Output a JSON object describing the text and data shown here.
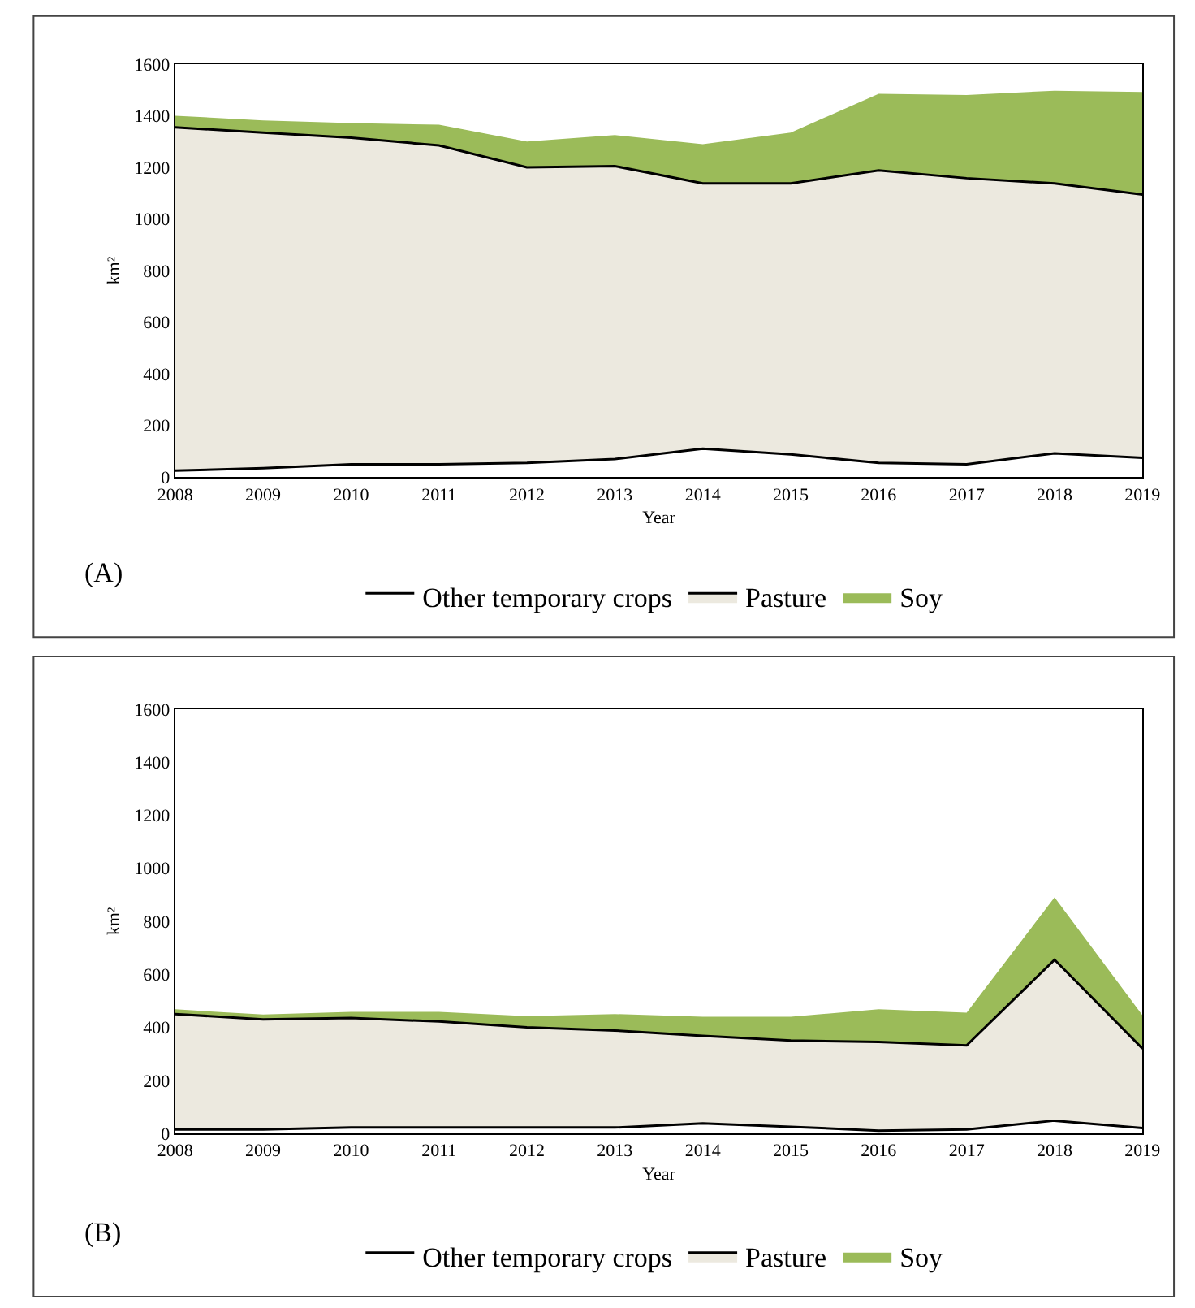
{
  "chart_data": [
    {
      "type": "area",
      "stacked": true,
      "xlabel": "Year",
      "ylabel": "km²",
      "annotations": [
        "(A)"
      ],
      "x": [
        2008,
        2009,
        2010,
        2011,
        2012,
        2013,
        2014,
        2015,
        2016,
        2017,
        2018,
        2019
      ],
      "xlim": [
        2008,
        2019
      ],
      "xticks": [
        2008,
        2009,
        2010,
        2011,
        2012,
        2013,
        2014,
        2015,
        2016,
        2017,
        2018,
        2019
      ],
      "ylim": [
        0,
        1600
      ],
      "yticks": [
        0,
        200,
        400,
        600,
        800,
        1000,
        1200,
        1400,
        1600
      ],
      "legend": "bottom",
      "grid": false,
      "series": [
        {
          "name": "Other temporary crops",
          "color": "#ffffff",
          "values": [
            25,
            35,
            50,
            50,
            55,
            70,
            110,
            88,
            55,
            50,
            92,
            75
          ]
        },
        {
          "name": "Pasture",
          "color": "#ece9df",
          "values": [
            1330,
            1300,
            1265,
            1235,
            1145,
            1135,
            1028,
            1050,
            1133,
            1108,
            1046,
            1020
          ]
        },
        {
          "name": "Soy",
          "color": "#9bbb59",
          "values": [
            45,
            47,
            57,
            80,
            100,
            120,
            152,
            197,
            297,
            322,
            359,
            397
          ]
        }
      ]
    },
    {
      "type": "area",
      "stacked": true,
      "xlabel": "Year",
      "ylabel": "km²",
      "annotations": [
        "(B)"
      ],
      "x": [
        2008,
        2009,
        2010,
        2011,
        2012,
        2013,
        2014,
        2015,
        2016,
        2017,
        2018,
        2019
      ],
      "xlim": [
        2008,
        2019
      ],
      "xticks": [
        2008,
        2009,
        2010,
        2011,
        2012,
        2013,
        2014,
        2015,
        2016,
        2017,
        2018,
        2019
      ],
      "ylim": [
        0,
        1600
      ],
      "yticks": [
        0,
        200,
        400,
        600,
        800,
        1000,
        1200,
        1400,
        1600
      ],
      "legend": "bottom",
      "grid": false,
      "series": [
        {
          "name": "Other temporary crops",
          "color": "#ffffff",
          "values": [
            15,
            15,
            22,
            22,
            22,
            22,
            38,
            25,
            10,
            15,
            48,
            20
          ]
        },
        {
          "name": "Pasture",
          "color": "#ece9df",
          "values": [
            435,
            415,
            413,
            400,
            378,
            366,
            330,
            325,
            335,
            317,
            607,
            300
          ]
        },
        {
          "name": "Soy",
          "color": "#9bbb59",
          "values": [
            18,
            18,
            23,
            36,
            42,
            62,
            72,
            90,
            123,
            123,
            235,
            125
          ]
        }
      ]
    }
  ]
}
